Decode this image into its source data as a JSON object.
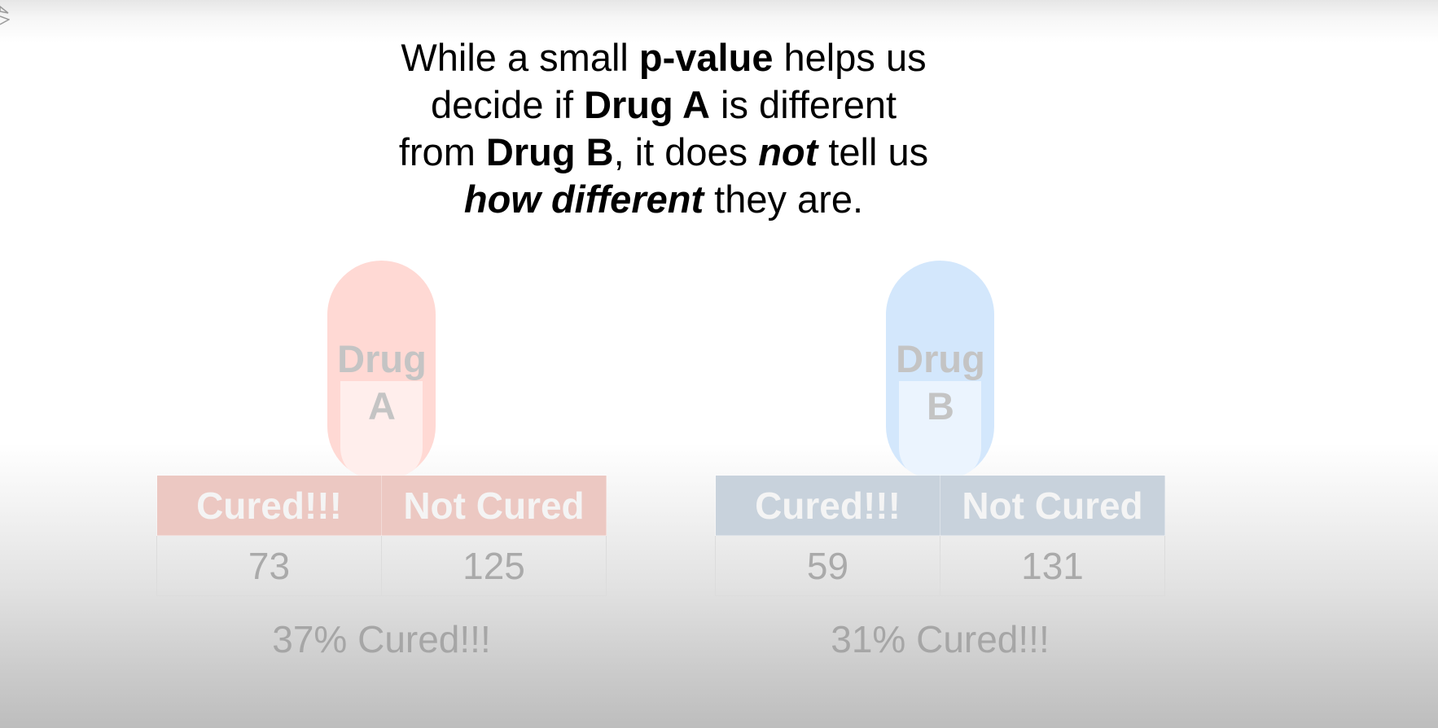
{
  "headline": {
    "line1": {
      "pre": "While a small ",
      "bold": "p-value",
      "post": " helps us"
    },
    "line2": {
      "pre": "decide if ",
      "bold": "Drug A",
      "post": " is different"
    },
    "line3": {
      "pre": "from ",
      "bold": "Drug B",
      "mid": ", it does ",
      "bolditalic": "not",
      "post": " tell us"
    },
    "line4": {
      "bolditalic": "how different",
      "post": " they are."
    }
  },
  "drug_a": {
    "pill_label_1": "Drug",
    "pill_label_2": "A",
    "headers": [
      "Cured!!!",
      "Not Cured"
    ],
    "values": [
      "73",
      "125"
    ],
    "summary": "37% Cured!!!",
    "pill_color": "#ffd9d4",
    "header_color": "#ecc8c2"
  },
  "drug_b": {
    "pill_label_1": "Drug",
    "pill_label_2": "B",
    "headers": [
      "Cured!!!",
      "Not Cured"
    ],
    "values": [
      "59",
      "131"
    ],
    "summary": "31% Cured!!!",
    "pill_color": "#d3e7fc",
    "header_color": "#c8d2dc"
  }
}
